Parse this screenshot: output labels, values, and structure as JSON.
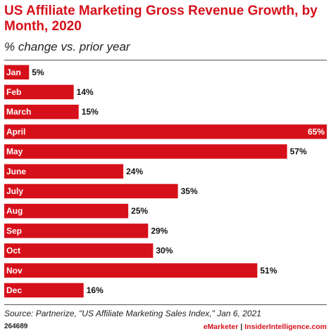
{
  "chart_data": {
    "type": "bar",
    "orientation": "horizontal",
    "title": "US Affiliate Marketing Gross Revenue Growth, by Month, 2020",
    "subtitle": "% change vs. prior year",
    "categories": [
      "Jan",
      "Feb",
      "March",
      "April",
      "May",
      "June",
      "July",
      "Aug",
      "Sep",
      "Oct",
      "Nov",
      "Dec"
    ],
    "values": [
      5,
      14,
      15,
      65,
      57,
      24,
      35,
      25,
      29,
      30,
      51,
      16
    ],
    "value_labels": [
      "5%",
      "14%",
      "15%",
      "65%",
      "57%",
      "24%",
      "35%",
      "25%",
      "29%",
      "30%",
      "51%",
      "16%"
    ],
    "xlim": [
      0,
      65
    ],
    "bar_color": "#d6101a",
    "category_label_color": "#ffffff",
    "grid": false
  },
  "source": "Source: Partnerize, \"US Affiliate Marketing Sales Index,\" Jan 6, 2021",
  "chart_id": "264689",
  "brand": {
    "name": "eMarketer",
    "separator": "|",
    "site": "InsiderIntelligence.com"
  }
}
